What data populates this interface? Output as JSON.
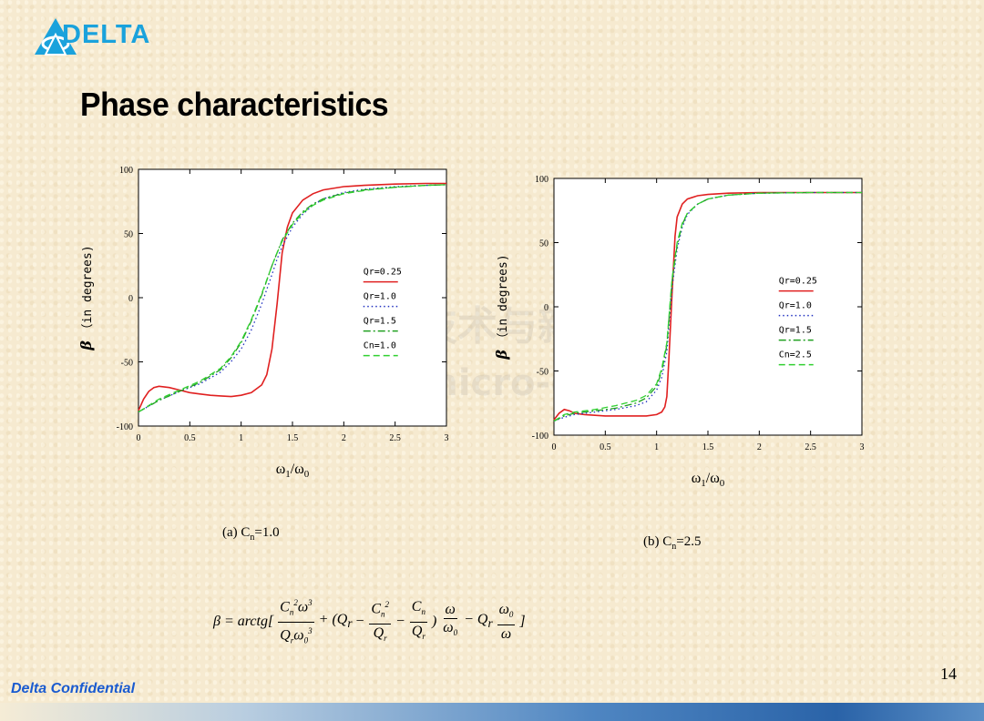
{
  "brand": {
    "name": "DELTA",
    "color": "#1aa2dc"
  },
  "slide": {
    "title": "Phase characteristics",
    "page_number": "14",
    "footer": "Delta Confidential"
  },
  "watermark": {
    "line1": "电力电子技术与新能源",
    "line2": "www.21micro-grid.com"
  },
  "formula": {
    "lhs": "β = arctg[",
    "t1_num": "C",
    "t1_den": "Q",
    "plus": "+ (Q",
    "minus1": "−",
    "minus2": "−",
    "close": ")",
    "minus3": "− Q",
    "end": "]"
  },
  "chart_data": [
    {
      "type": "line",
      "caption_main": "(a) C",
      "caption_sub": "n",
      "caption_val": "=1.0",
      "ylabel_sym": "β",
      "ylabel": "（in degrees)",
      "xlabel": "ω1/ω0",
      "xlim": [
        0,
        3
      ],
      "ylim": [
        -100,
        100
      ],
      "xticks": [
        "0",
        "0.5",
        "1",
        "1.5",
        "2",
        "2.5",
        "3"
      ],
      "yticks": [
        "100",
        "50",
        "0",
        "-50",
        "-100"
      ],
      "legend_position": "center-right",
      "series": [
        {
          "name": "Qr=0.25",
          "color": "#e02020",
          "dash": "solid",
          "x": [
            0,
            0.05,
            0.1,
            0.15,
            0.2,
            0.3,
            0.4,
            0.5,
            0.6,
            0.7,
            0.8,
            0.9,
            1.0,
            1.1,
            1.2,
            1.25,
            1.3,
            1.35,
            1.4,
            1.45,
            1.5,
            1.6,
            1.7,
            1.8,
            2.0,
            2.2,
            2.5,
            2.8,
            3.0
          ],
          "y": [
            -88,
            -79,
            -73,
            -70,
            -69,
            -70,
            -72,
            -74,
            -75,
            -76,
            -76.5,
            -77,
            -76,
            -74,
            -68,
            -60,
            -40,
            -5,
            35,
            55,
            66,
            76,
            81,
            84,
            86.5,
            87.5,
            88.5,
            89,
            89
          ]
        },
        {
          "name": "Qr=1.0",
          "color": "#2030c0",
          "dash": "dot",
          "x": [
            0,
            0.2,
            0.4,
            0.6,
            0.8,
            0.9,
            1.0,
            1.1,
            1.2,
            1.3,
            1.35,
            1.4,
            1.5,
            1.6,
            1.7,
            1.8,
            2.0,
            2.2,
            2.5,
            2.8,
            3.0
          ],
          "y": [
            -89,
            -80,
            -73,
            -67,
            -58,
            -50,
            -40,
            -25,
            -5,
            18,
            30,
            40,
            55,
            65,
            72,
            77,
            82,
            84.5,
            86.5,
            87.5,
            88
          ]
        },
        {
          "name": "Qr=1.5",
          "color": "#20a020",
          "dash": "dashdot",
          "x": [
            0,
            0.2,
            0.4,
            0.6,
            0.8,
            0.9,
            1.0,
            1.1,
            1.2,
            1.3,
            1.35,
            1.4,
            1.5,
            1.6,
            1.7,
            1.8,
            2.0,
            2.2,
            2.5,
            2.8,
            3.0
          ],
          "y": [
            -89,
            -80,
            -73,
            -66,
            -56,
            -47,
            -35,
            -18,
            2,
            25,
            35,
            45,
            58,
            67,
            73,
            77,
            81.5,
            84,
            86,
            87.5,
            88
          ]
        },
        {
          "name": "Cn=1.0",
          "color": "#30d030",
          "dash": "dash",
          "x": [
            0,
            0.2,
            0.4,
            0.6,
            0.8,
            0.9,
            1.0,
            1.1,
            1.2,
            1.3,
            1.35,
            1.4,
            1.5,
            1.6,
            1.7,
            1.8,
            2.0,
            2.2,
            2.5,
            2.8,
            3.0
          ],
          "y": [
            -89,
            -79,
            -72,
            -65,
            -55,
            -46,
            -34,
            -17,
            3,
            25,
            35,
            44,
            57,
            66,
            72,
            76,
            81,
            83.5,
            86,
            87.5,
            88
          ]
        }
      ]
    },
    {
      "type": "line",
      "caption_main": "(b) C",
      "caption_sub": "n",
      "caption_val": "=2.5",
      "ylabel_sym": "β",
      "ylabel": "（in degrees)",
      "xlabel": "ω1/ω0",
      "xlim": [
        0,
        3
      ],
      "ylim": [
        -100,
        100
      ],
      "xticks": [
        "0",
        "0.5",
        "1",
        "1.5",
        "2",
        "2.5",
        "3"
      ],
      "yticks": [
        "100",
        "50",
        "0",
        "-50",
        "-100"
      ],
      "legend_position": "center-right",
      "series": [
        {
          "name": "Qr=0.25",
          "color": "#e02020",
          "dash": "solid",
          "x": [
            0,
            0.05,
            0.1,
            0.15,
            0.2,
            0.3,
            0.5,
            0.7,
            0.9,
            1.0,
            1.05,
            1.08,
            1.1,
            1.12,
            1.15,
            1.18,
            1.2,
            1.25,
            1.3,
            1.4,
            1.5,
            1.7,
            2.0,
            2.5,
            3.0
          ],
          "y": [
            -88,
            -83,
            -80,
            -81,
            -83,
            -84,
            -85,
            -85,
            -85,
            -84,
            -82,
            -78,
            -70,
            -40,
            10,
            55,
            70,
            80,
            84,
            86.5,
            87.5,
            88.5,
            89,
            89,
            89
          ]
        },
        {
          "name": "Qr=1.0",
          "color": "#2030c0",
          "dash": "dot",
          "x": [
            0,
            0.1,
            0.2,
            0.4,
            0.6,
            0.8,
            0.9,
            1.0,
            1.05,
            1.1,
            1.12,
            1.15,
            1.2,
            1.25,
            1.3,
            1.4,
            1.5,
            1.7,
            2.0,
            2.5,
            3.0
          ],
          "y": [
            -89,
            -86,
            -84,
            -82,
            -80,
            -77,
            -74,
            -65,
            -55,
            -35,
            -15,
            15,
            45,
            62,
            72,
            80,
            84,
            87,
            88.5,
            89,
            89
          ]
        },
        {
          "name": "Qr=1.5",
          "color": "#20a020",
          "dash": "dashdot",
          "x": [
            0,
            0.1,
            0.2,
            0.4,
            0.6,
            0.8,
            0.9,
            1.0,
            1.05,
            1.1,
            1.12,
            1.15,
            1.2,
            1.25,
            1.3,
            1.4,
            1.5,
            1.7,
            2.0,
            2.5,
            3.0
          ],
          "y": [
            -89,
            -85,
            -83,
            -81,
            -79,
            -75,
            -71,
            -62,
            -50,
            -30,
            -10,
            20,
            48,
            64,
            73,
            80,
            84,
            87,
            88.5,
            89,
            89
          ]
        },
        {
          "name": "Cn=2.5",
          "color": "#30d030",
          "dash": "dash",
          "x": [
            0,
            0.1,
            0.2,
            0.4,
            0.6,
            0.8,
            0.9,
            1.0,
            1.05,
            1.1,
            1.12,
            1.15,
            1.2,
            1.25,
            1.3,
            1.4,
            1.5,
            1.7,
            2.0,
            2.5,
            3.0
          ],
          "y": [
            -89,
            -84,
            -82,
            -80,
            -77,
            -73,
            -69,
            -60,
            -48,
            -28,
            -8,
            22,
            50,
            65,
            73,
            80,
            84,
            87,
            88.5,
            89,
            89
          ]
        }
      ]
    }
  ]
}
